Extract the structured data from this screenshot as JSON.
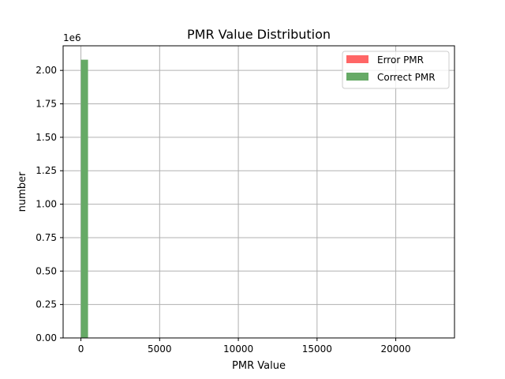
{
  "chart_data": {
    "type": "bar",
    "title": "PMR Value Distribution",
    "xlabel": "PMR Value",
    "ylabel": "number",
    "y_offset_label": "1e6",
    "xlim": [
      -1130,
      23730
    ],
    "ylim": [
      0,
      2184000
    ],
    "x_ticks": [
      0,
      5000,
      10000,
      15000,
      20000
    ],
    "x_tick_labels": [
      "0",
      "5000",
      "10000",
      "15000",
      "20000"
    ],
    "y_ticks": [
      0,
      250000,
      500000,
      750000,
      1000000,
      1250000,
      1500000,
      1750000,
      2000000
    ],
    "y_tick_labels": [
      "0.00",
      "0.25",
      "0.50",
      "0.75",
      "1.00",
      "1.25",
      "1.50",
      "1.75",
      "2.00"
    ],
    "grid": true,
    "legend_position": "top-right",
    "series": [
      {
        "name": "Error PMR",
        "color": "#ff6666",
        "bins": []
      },
      {
        "name": "Correct PMR",
        "color": "#66aa66",
        "bins": [
          {
            "x0": 0,
            "x1": 452,
            "value": 2080000
          }
        ]
      }
    ]
  }
}
